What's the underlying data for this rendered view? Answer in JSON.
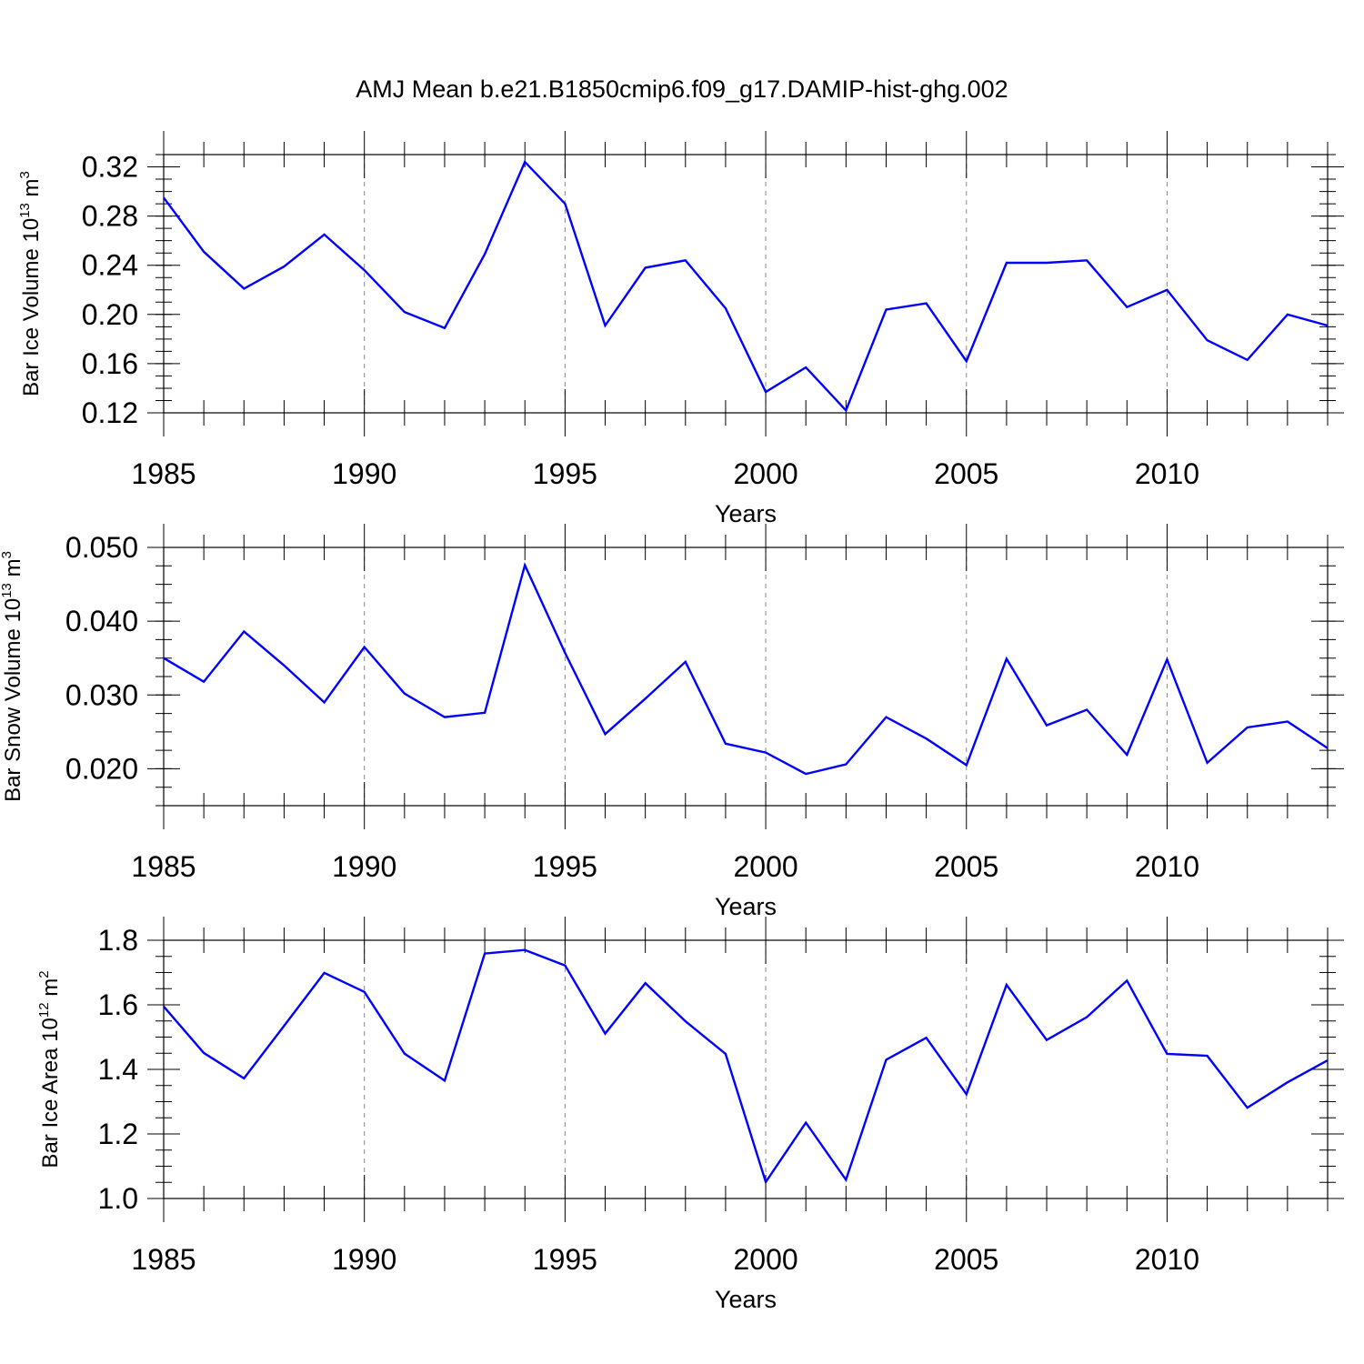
{
  "chart_data": {
    "title": "AMJ Mean b.e21.B1850cmip6.f09_g17.DAMIP-hist-ghg.002",
    "line_color": "#0000ff",
    "panels": [
      {
        "type": "line",
        "xlabel": "Years",
        "ylabel": {
          "prefix": "Bar Ice Volume 10",
          "exp": "13",
          "unit": " m",
          "unit_exp": "3"
        },
        "xlim": [
          1985,
          2014
        ],
        "ylim": [
          0.12,
          0.33
        ],
        "x_ticks": [
          "1985",
          "1990",
          "1995",
          "2000",
          "2005",
          "2010"
        ],
        "y_ticks": [
          "0.12",
          "0.16",
          "0.20",
          "0.24",
          "0.28",
          "0.32"
        ],
        "series": [
          {
            "name": "Bar Ice Volume",
            "x": [
              1985,
              1986,
              1987,
              1988,
              1989,
              1990,
              1991,
              1992,
              1993,
              1994,
              1995,
              1996,
              1997,
              1998,
              1999,
              2000,
              2001,
              2002,
              2003,
              2004,
              2005,
              2006,
              2007,
              2008,
              2009,
              2010,
              2011,
              2012,
              2013,
              2014
            ],
            "values": [
              0.295,
              0.251,
              0.221,
              0.239,
              0.265,
              0.236,
              0.202,
              0.189,
              0.249,
              0.324,
              0.29,
              0.191,
              0.238,
              0.244,
              0.205,
              0.137,
              0.157,
              0.122,
              0.204,
              0.209,
              0.162,
              0.242,
              0.242,
              0.244,
              0.206,
              0.22,
              0.179,
              0.163,
              0.2,
              0.191
            ]
          }
        ]
      },
      {
        "type": "line",
        "xlabel": "Years",
        "ylabel": {
          "prefix": "Bar Snow Volume 10",
          "exp": "13",
          "unit": " m",
          "unit_exp": "3"
        },
        "xlim": [
          1985,
          2014
        ],
        "ylim": [
          0.015,
          0.05
        ],
        "x_ticks": [
          "1985",
          "1990",
          "1995",
          "2000",
          "2005",
          "2010"
        ],
        "y_ticks": [
          "0.020",
          "0.030",
          "0.040",
          "0.050"
        ],
        "series": [
          {
            "name": "Bar Snow Volume",
            "x": [
              1985,
              1986,
              1987,
              1988,
              1989,
              1990,
              1991,
              1992,
              1993,
              1994,
              1995,
              1996,
              1997,
              1998,
              1999,
              2000,
              2001,
              2002,
              2003,
              2004,
              2005,
              2006,
              2007,
              2008,
              2009,
              2010,
              2011,
              2012,
              2013,
              2014
            ],
            "values": [
              0.035,
              0.0318,
              0.0386,
              0.034,
              0.029,
              0.0365,
              0.0302,
              0.027,
              0.0276,
              0.0476,
              0.0357,
              0.0247,
              0.0295,
              0.0345,
              0.0234,
              0.0222,
              0.0193,
              0.0206,
              0.027,
              0.0241,
              0.0205,
              0.0349,
              0.0259,
              0.028,
              0.0219,
              0.0348,
              0.0208,
              0.0256,
              0.0264,
              0.0228
            ]
          }
        ]
      },
      {
        "type": "line",
        "xlabel": "Years",
        "ylabel": {
          "prefix": "Bar Ice Area 10",
          "exp": "12",
          "unit": " m",
          "unit_exp": "2"
        },
        "xlim": [
          1985,
          2014
        ],
        "ylim": [
          1.0,
          1.8
        ],
        "x_ticks": [
          "1985",
          "1990",
          "1995",
          "2000",
          "2005",
          "2010"
        ],
        "y_ticks": [
          "1.0",
          "1.2",
          "1.4",
          "1.6",
          "1.8"
        ],
        "series": [
          {
            "name": "Bar Ice Area",
            "x": [
              1985,
              1986,
              1987,
              1988,
              1989,
              1990,
              1991,
              1992,
              1993,
              1994,
              1995,
              1996,
              1997,
              1998,
              1999,
              2000,
              2001,
              2002,
              2003,
              2004,
              2005,
              2006,
              2007,
              2008,
              2009,
              2010,
              2011,
              2012,
              2013,
              2014
            ],
            "values": [
              1.595,
              1.451,
              1.372,
              1.535,
              1.699,
              1.64,
              1.449,
              1.365,
              1.759,
              1.77,
              1.722,
              1.511,
              1.667,
              1.549,
              1.448,
              1.051,
              1.235,
              1.058,
              1.43,
              1.498,
              1.323,
              1.662,
              1.491,
              1.562,
              1.675,
              1.448,
              1.442,
              1.281,
              1.36,
              1.428
            ]
          }
        ]
      }
    ]
  }
}
